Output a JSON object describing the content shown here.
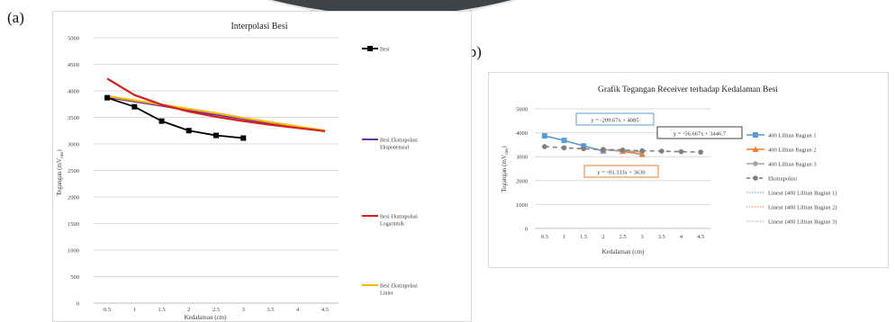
{
  "panel_labels": {
    "a": "(a)",
    "b": "(b)"
  },
  "colors": {
    "besi": "#000000",
    "eksponensial": "#7030a0",
    "logaritmik": "#d52020",
    "linier": "#f5b800",
    "bagian1": "#5b9bd5",
    "bagian2": "#ed7d31",
    "bagian3": "#a5a5a5",
    "ekstrapolasi": "#7f7f7f",
    "gridline": "#d9d9d9",
    "eq1_border": "#5b9bd5",
    "eq2_border": "#404040",
    "eq3_border": "#ed7d31"
  },
  "chart_data": [
    {
      "type": "line",
      "title": "Interpolasi Besi",
      "xlabel": "Kedalaman (cm)",
      "ylabel": "Tegangan (mV",
      "ylabel_sub": "rms",
      "ylabel_end": ")",
      "categories": [
        "0.5",
        "1",
        "1.5",
        "2",
        "2.5",
        "3",
        "3.5",
        "4",
        "4.5"
      ],
      "ylim": [
        0,
        5000
      ],
      "yticks": [
        0,
        500,
        1000,
        1500,
        2000,
        2500,
        3000,
        3500,
        4000,
        4500,
        5000
      ],
      "grid": true,
      "legend_position": "right",
      "series": [
        {
          "name": "Besi",
          "color_key": "besi",
          "marker": "square",
          "values": [
            3870,
            3700,
            3430,
            3250,
            3160,
            3110,
            null,
            null,
            null
          ]
        },
        {
          "name": "Besi Ekstrapolasi Eksponensial",
          "color_key": "eksponensial",
          "marker": "none",
          "values": [
            3880,
            3800,
            3720,
            3630,
            3550,
            3470,
            3390,
            3320,
            3240
          ]
        },
        {
          "name": "Besi Ekstrapolasi Logaritmik",
          "color_key": "logaritmik",
          "marker": "none",
          "values": [
            4230,
            3920,
            3740,
            3610,
            3510,
            3430,
            3360,
            3300,
            3240
          ]
        },
        {
          "name": "Besi Ekstrapolasi Linier",
          "color_key": "linier",
          "marker": "none",
          "values": [
            3900,
            3820,
            3740,
            3660,
            3580,
            3490,
            3410,
            3330,
            3250
          ]
        }
      ]
    },
    {
      "type": "line",
      "title": "Grafik Tegangan Receiver terhadap Kedalaman Besi",
      "xlabel": "Kedalaman (cm)",
      "ylabel": "Tegangan (mV",
      "ylabel_sub": "rms",
      "ylabel_end": ")",
      "categories": [
        "0.5",
        "1",
        "1.5",
        "2",
        "2.5",
        "3",
        "3.5",
        "4",
        "4.5"
      ],
      "ylim": [
        0,
        5000
      ],
      "yticks": [
        0,
        1000,
        2000,
        3000,
        4000,
        5000
      ],
      "grid": true,
      "legend_position": "right",
      "series": [
        {
          "name": "400 Lilitan Bagian 1",
          "color_key": "bagian1",
          "marker": "square",
          "dash": "solid",
          "values": [
            3870,
            3680,
            3450,
            3240,
            null,
            null,
            null,
            null,
            null
          ]
        },
        {
          "name": "400 Lilitan Bagian 2",
          "color_key": "bagian2",
          "marker": "triangle",
          "dash": "solid",
          "values": [
            null,
            null,
            null,
            3300,
            3230,
            3100,
            null,
            null,
            null
          ]
        },
        {
          "name": "400 Lilitan Bagian 3",
          "color_key": "bagian3",
          "marker": "circle",
          "dash": "solid",
          "values": [
            null,
            null,
            null,
            3290,
            3250,
            3200,
            null,
            null,
            null
          ]
        },
        {
          "name": "Ekstrapolasi",
          "color_key": "ekstrapolasi",
          "marker": "circle",
          "dash": "dash",
          "values": [
            3420,
            3370,
            3330,
            3300,
            3280,
            3250,
            3230,
            3210,
            3190
          ]
        }
      ],
      "trendlines": [
        {
          "name": "Linear (400 Lilitan Bagian 1)",
          "color_key": "bagian1",
          "equation": "y = -209.67x + 4085"
        },
        {
          "name": "Linear (400 Lilitan Bagian 2)",
          "color_key": "bagian2",
          "equation": "y = -93.333x + 3630"
        },
        {
          "name": "Linear (400 Lilitan Bagian 3)",
          "color_key": "bagian3",
          "equation": "y = -56.667x + 3446.7"
        }
      ]
    }
  ]
}
